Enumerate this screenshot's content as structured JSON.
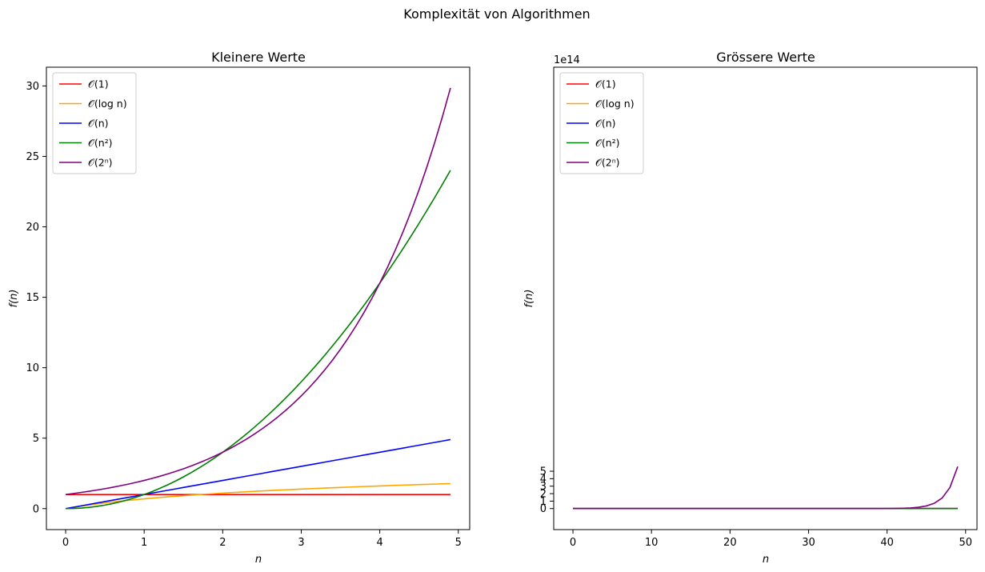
{
  "suptitle": "Komplexität von Algorithmen",
  "colors": {
    "O1": "#ff0000",
    "Olog": "#ffa500",
    "On": "#0000ff",
    "On2": "#008000",
    "O2n": "#800080",
    "axes": "#000000",
    "legend_border": "#cccccc"
  },
  "chart_data": [
    {
      "type": "line",
      "title": "Kleinere Werte",
      "xlabel": "n",
      "ylabel": "f(n)",
      "xlim": [
        -0.245,
        5.145
      ],
      "ylim": [
        -1.49,
        31.33
      ],
      "xticks": [
        0,
        1,
        2,
        3,
        4,
        5
      ],
      "xtick_labels": [
        "0",
        "1",
        "2",
        "3",
        "4",
        "5"
      ],
      "yticks": [
        0,
        5,
        10,
        15,
        20,
        25,
        30
      ],
      "ytick_labels": [
        "0",
        "5",
        "10",
        "15",
        "20",
        "25",
        "30"
      ],
      "offset_text": "",
      "legend_position": "upper-left",
      "grid": false,
      "x": [
        0.0,
        0.1,
        0.2,
        0.3,
        0.4,
        0.5,
        0.6,
        0.7,
        0.8,
        0.9,
        1.0,
        1.1,
        1.2,
        1.3,
        1.4,
        1.5,
        1.6,
        1.7,
        1.8,
        1.9,
        2.0,
        2.1,
        2.2,
        2.3,
        2.4,
        2.5,
        2.6,
        2.7,
        2.8,
        2.9,
        3.0,
        3.1,
        3.2,
        3.3,
        3.4,
        3.5,
        3.6,
        3.7,
        3.8,
        3.9,
        4.0,
        4.1,
        4.2,
        4.3,
        4.4,
        4.5,
        4.6,
        4.7,
        4.8,
        4.9
      ],
      "series": [
        {
          "name": "𝒪(1)",
          "color_key": "O1",
          "values": [
            1,
            1,
            1,
            1,
            1,
            1,
            1,
            1,
            1,
            1,
            1,
            1,
            1,
            1,
            1,
            1,
            1,
            1,
            1,
            1,
            1,
            1,
            1,
            1,
            1,
            1,
            1,
            1,
            1,
            1,
            1,
            1,
            1,
            1,
            1,
            1,
            1,
            1,
            1,
            1,
            1,
            1,
            1,
            1,
            1,
            1,
            1,
            1,
            1,
            1
          ]
        },
        {
          "name": "𝒪(log n)",
          "color_key": "Olog",
          "values": [
            0.0,
            0.095,
            0.182,
            0.262,
            0.336,
            0.405,
            0.47,
            0.531,
            0.588,
            0.642,
            0.693,
            0.742,
            0.788,
            0.833,
            0.875,
            0.916,
            0.956,
            0.993,
            1.03,
            1.065,
            1.099,
            1.131,
            1.163,
            1.194,
            1.224,
            1.253,
            1.281,
            1.308,
            1.335,
            1.361,
            1.386,
            1.411,
            1.435,
            1.459,
            1.482,
            1.504,
            1.526,
            1.548,
            1.569,
            1.589,
            1.609,
            1.629,
            1.649,
            1.668,
            1.686,
            1.705,
            1.723,
            1.74,
            1.758,
            1.775
          ]
        },
        {
          "name": "𝒪(n)",
          "color_key": "On",
          "values": [
            0.0,
            0.1,
            0.2,
            0.3,
            0.4,
            0.5,
            0.6,
            0.7,
            0.8,
            0.9,
            1.0,
            1.1,
            1.2,
            1.3,
            1.4,
            1.5,
            1.6,
            1.7,
            1.8,
            1.9,
            2.0,
            2.1,
            2.2,
            2.3,
            2.4,
            2.5,
            2.6,
            2.7,
            2.8,
            2.9,
            3.0,
            3.1,
            3.2,
            3.3,
            3.4,
            3.5,
            3.6,
            3.7,
            3.8,
            3.9,
            4.0,
            4.1,
            4.2,
            4.3,
            4.4,
            4.5,
            4.6,
            4.7,
            4.8,
            4.9
          ]
        },
        {
          "name": "𝒪(n²)",
          "color_key": "On2",
          "values": [
            0.0,
            0.01,
            0.04,
            0.09,
            0.16,
            0.25,
            0.36,
            0.49,
            0.64,
            0.81,
            1.0,
            1.21,
            1.44,
            1.69,
            1.96,
            2.25,
            2.56,
            2.89,
            3.24,
            3.61,
            4.0,
            4.41,
            4.84,
            5.29,
            5.76,
            6.25,
            6.76,
            7.29,
            7.84,
            8.41,
            9.0,
            9.61,
            10.24,
            10.89,
            11.56,
            12.25,
            12.96,
            13.69,
            14.44,
            15.21,
            16.0,
            16.81,
            17.64,
            18.49,
            19.36,
            20.25,
            21.16,
            22.09,
            23.04,
            24.01
          ]
        },
        {
          "name": "𝒪(2ⁿ)",
          "color_key": "O2n",
          "values": [
            1.0,
            1.072,
            1.149,
            1.231,
            1.32,
            1.414,
            1.516,
            1.625,
            1.741,
            1.866,
            2.0,
            2.144,
            2.297,
            2.462,
            2.639,
            2.828,
            3.031,
            3.249,
            3.482,
            3.732,
            4.0,
            4.287,
            4.595,
            4.925,
            5.278,
            5.657,
            6.063,
            6.498,
            6.964,
            7.464,
            8.0,
            8.574,
            9.19,
            9.849,
            10.556,
            11.314,
            12.126,
            12.996,
            13.929,
            14.929,
            16.0,
            17.148,
            18.379,
            19.698,
            21.112,
            22.627,
            24.251,
            25.992,
            27.858,
            29.857
          ]
        }
      ]
    },
    {
      "type": "line",
      "title": "Grössere Werte",
      "xlabel": "n",
      "ylabel": "f(n)",
      "xlim": [
        -2.45,
        51.45
      ],
      "ylim": [
        -2.815,
        59.1
      ],
      "y_unit_note": "y values in units of 1e14",
      "xticks": [
        0,
        10,
        20,
        30,
        40,
        50
      ],
      "xtick_labels": [
        "0",
        "10",
        "20",
        "30",
        "40",
        "50"
      ],
      "yticks": [
        0,
        1,
        2,
        3,
        4,
        5
      ],
      "ytick_labels": [
        "0",
        "1",
        "2",
        "3",
        "4",
        "5"
      ],
      "offset_text": "1e14",
      "legend_position": "upper-left",
      "grid": false,
      "x": [
        0,
        1,
        2,
        3,
        4,
        5,
        6,
        7,
        8,
        9,
        10,
        11,
        12,
        13,
        14,
        15,
        16,
        17,
        18,
        19,
        20,
        21,
        22,
        23,
        24,
        25,
        26,
        27,
        28,
        29,
        30,
        31,
        32,
        33,
        34,
        35,
        36,
        37,
        38,
        39,
        40,
        41,
        42,
        43,
        44,
        45,
        46,
        47,
        48,
        49
      ],
      "series": [
        {
          "name": "𝒪(1)",
          "color_key": "O1",
          "values": [
            0,
            0,
            0,
            0,
            0,
            0,
            0,
            0,
            0,
            0,
            0,
            0,
            0,
            0,
            0,
            0,
            0,
            0,
            0,
            0,
            0,
            0,
            0,
            0,
            0,
            0,
            0,
            0,
            0,
            0,
            0,
            0,
            0,
            0,
            0,
            0,
            0,
            0,
            0,
            0,
            0,
            0,
            0,
            0,
            0,
            0,
            0,
            0,
            0,
            0
          ]
        },
        {
          "name": "𝒪(log n)",
          "color_key": "Olog",
          "values": [
            0,
            0,
            0,
            0,
            0,
            0,
            0,
            0,
            0,
            0,
            0,
            0,
            0,
            0,
            0,
            0,
            0,
            0,
            0,
            0,
            0,
            0,
            0,
            0,
            0,
            0,
            0,
            0,
            0,
            0,
            0,
            0,
            0,
            0,
            0,
            0,
            0,
            0,
            0,
            0,
            0,
            0,
            0,
            0,
            0,
            0,
            0,
            0,
            0,
            0
          ]
        },
        {
          "name": "𝒪(n)",
          "color_key": "On",
          "values": [
            0,
            0,
            0,
            0,
            0,
            0,
            0,
            0,
            0,
            0,
            0,
            0,
            0,
            0,
            0,
            0,
            0,
            0,
            0,
            0,
            0,
            0,
            0,
            0,
            0,
            0,
            0,
            0,
            0,
            0,
            0,
            0,
            0,
            0,
            0,
            0,
            0,
            0,
            0,
            0,
            0,
            0,
            0,
            0,
            0,
            0,
            0,
            0,
            0,
            0
          ]
        },
        {
          "name": "𝒪(n²)",
          "color_key": "On2",
          "values": [
            0,
            0,
            0,
            0,
            0,
            0,
            0,
            0,
            0,
            0,
            0,
            0,
            0,
            0,
            0,
            0,
            0,
            0,
            0,
            0,
            0,
            0,
            0,
            0,
            0,
            0,
            0,
            0,
            0,
            0,
            0,
            0,
            0,
            0,
            0,
            0,
            0,
            0,
            0,
            0,
            0,
            0,
            0,
            0,
            0,
            0,
            0,
            0,
            0,
            0
          ]
        },
        {
          "name": "𝒪(2ⁿ)",
          "color_key": "O2n",
          "values": [
            0,
            0,
            0,
            0,
            0,
            0,
            0,
            0,
            0,
            0,
            0,
            0,
            0,
            0,
            0,
            0,
            0,
            0,
            0,
            0,
            0,
            0,
            0,
            0,
            0,
            0,
            0,
            0,
            0,
            0,
            0,
            0,
            0,
            0,
            0,
            0,
            0.0007,
            0.0014,
            0.0027,
            0.0055,
            0.011,
            0.022,
            0.044,
            0.088,
            0.176,
            0.352,
            0.704,
            1.407,
            2.815,
            5.63
          ]
        }
      ]
    }
  ]
}
